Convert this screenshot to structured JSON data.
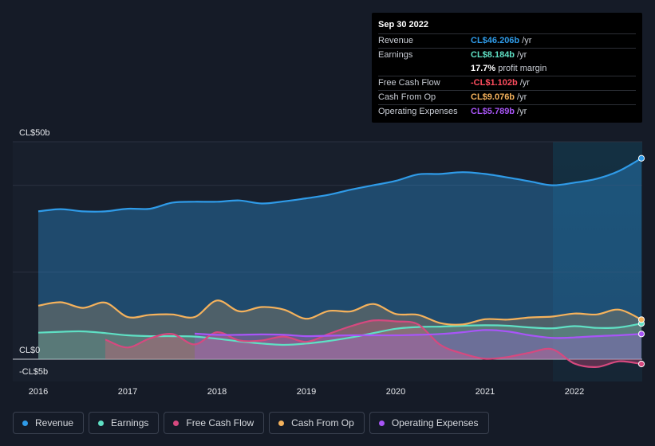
{
  "tooltip": {
    "date": "Sep 30 2022",
    "rows": [
      {
        "label": "Revenue",
        "value": "CL$46.206b",
        "unit": "/yr",
        "color": "#2f9be8"
      },
      {
        "label": "Earnings",
        "value": "CL$8.184b",
        "unit": "/yr",
        "color": "#5fe0c4"
      },
      {
        "label": "",
        "value": "17.7%",
        "unit": "profit margin",
        "color": "#ffffff"
      },
      {
        "label": "Free Cash Flow",
        "value": "-CL$1.102b",
        "unit": "/yr",
        "color": "#ff4d5e"
      },
      {
        "label": "Cash From Op",
        "value": "CL$9.076b",
        "unit": "/yr",
        "color": "#f5b25c"
      },
      {
        "label": "Operating Expenses",
        "value": "CL$5.789b",
        "unit": "/yr",
        "color": "#a855f7"
      }
    ]
  },
  "legend": [
    {
      "label": "Revenue",
      "color": "#2f9be8"
    },
    {
      "label": "Earnings",
      "color": "#5fe0c4"
    },
    {
      "label": "Free Cash Flow",
      "color": "#d6497f"
    },
    {
      "label": "Cash From Op",
      "color": "#f5b25c"
    },
    {
      "label": "Operating Expenses",
      "color": "#a855f7"
    }
  ],
  "chart_data": {
    "type": "area",
    "title": "",
    "x_ticks": [
      "2016",
      "2017",
      "2018",
      "2019",
      "2020",
      "2021",
      "2022"
    ],
    "y_labels": {
      "top": "CL$50b",
      "zero": "CL$0",
      "bottom": "-CL$5b"
    },
    "ylim": [
      -5,
      50
    ],
    "xlim": [
      2016.0,
      2022.75
    ],
    "grid": true,
    "series": [
      {
        "name": "Revenue",
        "color": "#2f9be8",
        "filled": true,
        "x": [
          2016.0,
          2016.25,
          2016.5,
          2016.75,
          2017.0,
          2017.25,
          2017.5,
          2017.75,
          2018.0,
          2018.25,
          2018.5,
          2018.75,
          2019.0,
          2019.25,
          2019.5,
          2019.75,
          2020.0,
          2020.25,
          2020.5,
          2020.75,
          2021.0,
          2021.25,
          2021.5,
          2021.75,
          2022.0,
          2022.25,
          2022.5,
          2022.75
        ],
        "values": [
          34.0,
          34.5,
          34.0,
          34.0,
          34.6,
          34.6,
          36.0,
          36.2,
          36.2,
          36.5,
          35.8,
          36.3,
          37.0,
          37.8,
          39.0,
          40.0,
          41.0,
          42.5,
          42.6,
          43.0,
          42.6,
          41.8,
          40.9,
          40.0,
          40.6,
          41.5,
          43.3,
          46.2
        ]
      },
      {
        "name": "Earnings",
        "color": "#5fe0c4",
        "filled": true,
        "x": [
          2016.0,
          2016.25,
          2016.5,
          2016.75,
          2017.0,
          2017.25,
          2017.5,
          2017.75,
          2018.0,
          2018.25,
          2018.5,
          2018.75,
          2019.0,
          2019.25,
          2019.5,
          2019.75,
          2020.0,
          2020.25,
          2020.5,
          2020.75,
          2021.0,
          2021.25,
          2021.5,
          2021.75,
          2022.0,
          2022.25,
          2022.5,
          2022.75
        ],
        "values": [
          6.1,
          6.3,
          6.4,
          6.0,
          5.5,
          5.3,
          5.3,
          5.2,
          4.7,
          4.1,
          3.6,
          3.3,
          3.6,
          4.2,
          5.0,
          6.0,
          7.0,
          7.4,
          7.5,
          7.7,
          7.8,
          7.7,
          7.3,
          7.1,
          7.6,
          7.2,
          7.3,
          8.2
        ]
      },
      {
        "name": "Free Cash Flow",
        "color": "#d6497f",
        "filled": true,
        "x": [
          2016.75,
          2017.0,
          2017.25,
          2017.5,
          2017.75,
          2018.0,
          2018.25,
          2018.5,
          2018.75,
          2019.0,
          2019.25,
          2019.5,
          2019.75,
          2020.0,
          2020.25,
          2020.5,
          2020.75,
          2021.0,
          2021.25,
          2021.5,
          2021.75,
          2022.0,
          2022.25,
          2022.5,
          2022.75
        ],
        "values": [
          4.5,
          2.7,
          4.8,
          5.8,
          3.4,
          6.2,
          4.3,
          4.3,
          5.2,
          4.0,
          5.8,
          7.6,
          8.9,
          8.7,
          8.0,
          3.3,
          1.3,
          0.1,
          0.5,
          1.5,
          2.3,
          -1.0,
          -1.8,
          -0.5,
          -1.1
        ]
      },
      {
        "name": "Cash From Op",
        "color": "#f5b25c",
        "filled": true,
        "x": [
          2016.0,
          2016.25,
          2016.5,
          2016.75,
          2017.0,
          2017.25,
          2017.5,
          2017.75,
          2018.0,
          2018.25,
          2018.5,
          2018.75,
          2019.0,
          2019.25,
          2019.5,
          2019.75,
          2020.0,
          2020.25,
          2020.5,
          2020.75,
          2021.0,
          2021.25,
          2021.5,
          2021.75,
          2022.0,
          2022.25,
          2022.5,
          2022.75
        ],
        "values": [
          12.3,
          13.1,
          11.8,
          13.0,
          9.7,
          10.2,
          10.3,
          9.7,
          13.5,
          11.0,
          12.0,
          11.4,
          9.3,
          11.1,
          11.0,
          12.7,
          10.4,
          10.2,
          8.3,
          8.0,
          9.2,
          9.1,
          9.6,
          9.8,
          10.5,
          10.3,
          11.4,
          9.1
        ]
      },
      {
        "name": "Operating Expenses",
        "color": "#a855f7",
        "filled": true,
        "x": [
          2017.75,
          2018.0,
          2018.25,
          2018.5,
          2018.75,
          2019.0,
          2019.25,
          2019.5,
          2019.75,
          2020.0,
          2020.25,
          2020.5,
          2020.75,
          2021.0,
          2021.25,
          2021.5,
          2021.75,
          2022.0,
          2022.25,
          2022.5,
          2022.75
        ],
        "values": [
          5.9,
          5.6,
          5.6,
          5.7,
          5.6,
          5.3,
          5.4,
          5.5,
          5.5,
          5.5,
          5.6,
          5.8,
          6.2,
          6.7,
          6.4,
          5.5,
          4.9,
          5.0,
          5.3,
          5.5,
          5.8
        ]
      }
    ]
  }
}
